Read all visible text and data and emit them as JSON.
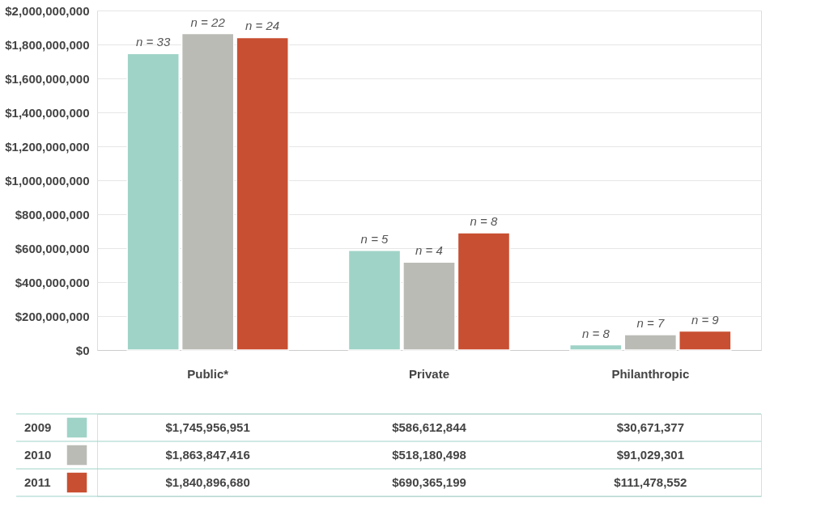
{
  "chart_data": {
    "type": "bar",
    "categories": [
      "Public*",
      "Private",
      "Philanthropic"
    ],
    "series": [
      {
        "name": "2009",
        "color": "#9fd3c7",
        "values": [
          1745956951,
          586612844,
          30671377
        ],
        "value_labels": [
          "$1,745,956,951",
          "$586,612,844",
          "$30,671,377"
        ]
      },
      {
        "name": "2010",
        "color": "#bbbbb6",
        "values": [
          1863847416,
          518180498,
          91029301
        ],
        "value_labels": [
          "$1,863,847,416",
          "$518,180,498",
          "$91,029,301"
        ]
      },
      {
        "name": "2011",
        "color": "#c84f31",
        "values": [
          1840896680,
          690365199,
          111478552
        ],
        "value_labels": [
          "$1,840,896,680",
          "$690,365,199",
          "$111,478,552"
        ]
      }
    ],
    "annotations": [
      "n = 33",
      "n = 5",
      "n = 8",
      "n = 22",
      "n = 4",
      "n = 7",
      "n = 24",
      "n = 8",
      "n = 9"
    ],
    "ylim": [
      0,
      2000000000
    ],
    "yticks": [
      {
        "value": 0,
        "label": "$0"
      },
      {
        "value": 200000000,
        "label": "$200,000,000"
      },
      {
        "value": 400000000,
        "label": "$400,000,000"
      },
      {
        "value": 600000000,
        "label": "$600,000,000"
      },
      {
        "value": 800000000,
        "label": "$800,000,000"
      },
      {
        "value": 1000000000,
        "label": "$1,000,000,000"
      },
      {
        "value": 1200000000,
        "label": "$1,200,000,000"
      },
      {
        "value": 1400000000,
        "label": "$1,400,000,000"
      },
      {
        "value": 1600000000,
        "label": "$1,600,000,000"
      },
      {
        "value": 1800000000,
        "label": "$1,800,000,000"
      },
      {
        "value": 2000000000,
        "label": "$2,000,000,000"
      }
    ],
    "grid": "y",
    "legend": "bottom"
  }
}
